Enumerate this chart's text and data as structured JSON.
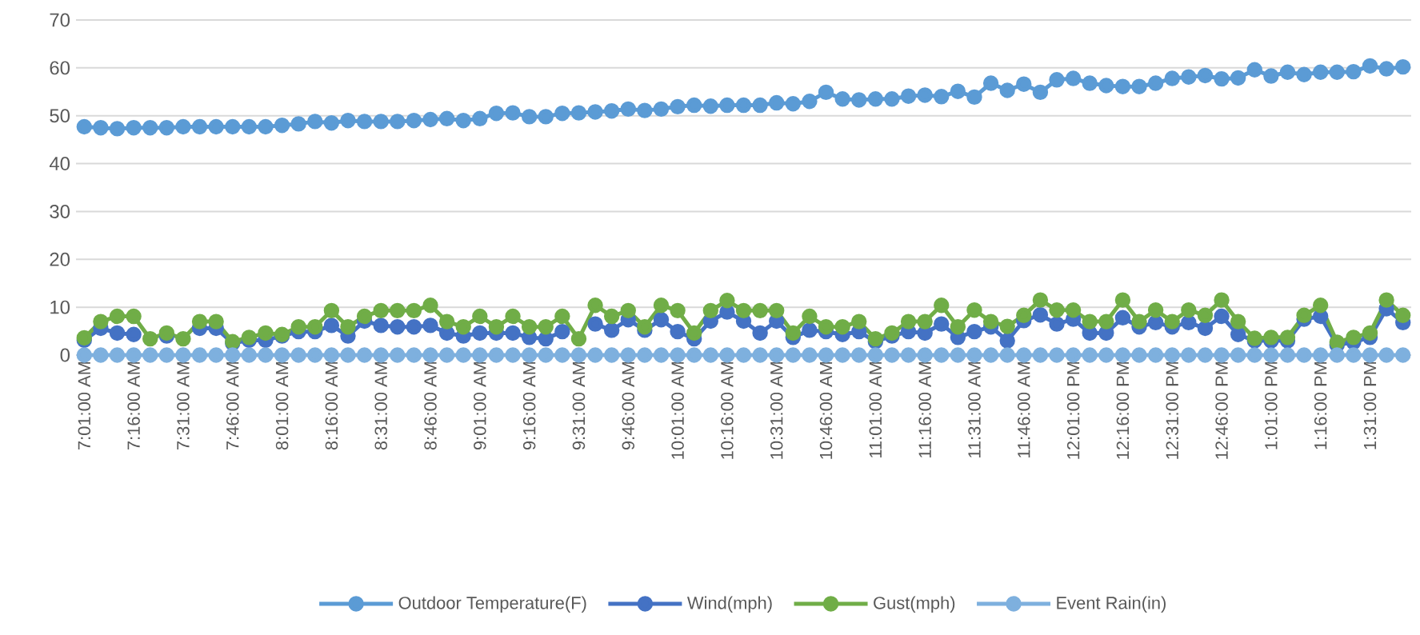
{
  "chart_data": {
    "type": "line",
    "categories": [
      "7:01:00 AM",
      null,
      null,
      "7:16:00 AM",
      null,
      null,
      "7:31:00 AM",
      null,
      null,
      "7:46:00 AM",
      null,
      null,
      "8:01:00 AM",
      null,
      null,
      "8:16:00 AM",
      null,
      null,
      "8:31:00 AM",
      null,
      null,
      "8:46:00 AM",
      null,
      null,
      "9:01:00 AM",
      null,
      null,
      "9:16:00 AM",
      null,
      null,
      "9:31:00 AM",
      null,
      null,
      "9:46:00 AM",
      null,
      null,
      "10:01:00 AM",
      null,
      null,
      "10:16:00 AM",
      null,
      null,
      "10:31:00 AM",
      null,
      null,
      "10:46:00 AM",
      null,
      null,
      "11:01:00 AM",
      null,
      null,
      "11:16:00 AM",
      null,
      null,
      "11:31:00 AM",
      null,
      null,
      "11:46:00 AM",
      null,
      null,
      "12:01:00 PM",
      null,
      null,
      "12:16:00 PM",
      null,
      null,
      "12:31:00 PM",
      null,
      null,
      "12:46:00 PM",
      null,
      null,
      "1:01:00 PM",
      null,
      null,
      "1:16:00 PM",
      null,
      null,
      "1:31:00 PM",
      null,
      null
    ],
    "series": [
      {
        "name": "Outdoor Temperature(F)",
        "color": "#5b9bd5",
        "values": [
          47.7,
          47.5,
          47.3,
          47.5,
          47.5,
          47.5,
          47.7,
          47.7,
          47.7,
          47.7,
          47.7,
          47.7,
          48.0,
          48.3,
          48.8,
          48.5,
          49.0,
          48.8,
          48.8,
          48.8,
          49.0,
          49.2,
          49.4,
          49.0,
          49.4,
          50.5,
          50.6,
          49.8,
          49.8,
          50.5,
          50.6,
          50.8,
          51.0,
          51.4,
          51.1,
          51.4,
          51.9,
          52.2,
          52.0,
          52.2,
          52.2,
          52.2,
          52.7,
          52.5,
          53.0,
          54.9,
          53.5,
          53.3,
          53.5,
          53.5,
          54.1,
          54.3,
          54.0,
          55.1,
          53.9,
          56.8,
          55.3,
          56.6,
          54.9,
          57.5,
          57.8,
          56.8,
          56.3,
          56.1,
          56.1,
          56.8,
          57.8,
          58.1,
          58.4,
          57.7,
          57.9,
          59.6,
          58.3,
          59.1,
          58.6,
          59.1,
          59.1,
          59.2,
          60.4,
          59.8,
          60.2
        ]
      },
      {
        "name": "Wind(mph)",
        "color": "#4472c4",
        "values": [
          3.1,
          5.6,
          4.6,
          4.3,
          null,
          4.0,
          null,
          5.6,
          5.6,
          2.5,
          3.1,
          3.1,
          4.0,
          4.9,
          4.9,
          6.2,
          4.0,
          7.1,
          6.2,
          5.9,
          5.9,
          6.2,
          4.6,
          4.0,
          4.6,
          4.6,
          4.6,
          3.7,
          3.4,
          4.9,
          null,
          6.5,
          5.2,
          7.4,
          5.2,
          7.4,
          4.9,
          3.4,
          7.1,
          9.0,
          7.1,
          4.6,
          7.1,
          3.7,
          5.2,
          4.9,
          4.3,
          4.9,
          2.8,
          4.0,
          4.9,
          4.6,
          6.5,
          3.7,
          4.9,
          5.9,
          3.0,
          7.2,
          8.4,
          6.5,
          7.5,
          4.6,
          4.6,
          7.8,
          5.9,
          6.8,
          5.9,
          6.8,
          5.6,
          8.1,
          4.3,
          3.0,
          3.0,
          3.0,
          7.5,
          8.1,
          2.1,
          2.7,
          3.7,
          9.7,
          6.8
        ]
      },
      {
        "name": "Gust(mph)",
        "color": "#70ad47",
        "values": [
          3.6,
          7.0,
          8.1,
          8.1,
          3.4,
          4.6,
          3.4,
          7.0,
          7.0,
          2.8,
          3.7,
          4.6,
          4.3,
          5.9,
          5.9,
          9.3,
          5.9,
          8.1,
          9.3,
          9.3,
          9.3,
          10.4,
          7.0,
          5.9,
          8.1,
          5.9,
          8.1,
          5.9,
          5.9,
          8.1,
          3.4,
          10.4,
          8.1,
          9.3,
          5.9,
          10.4,
          9.3,
          4.6,
          9.3,
          11.4,
          9.3,
          9.3,
          9.3,
          4.6,
          8.1,
          5.9,
          5.9,
          7.0,
          3.4,
          4.6,
          7.0,
          7.0,
          10.4,
          5.9,
          9.4,
          7.0,
          6.0,
          8.3,
          11.5,
          9.4,
          9.4,
          7.0,
          7.0,
          11.5,
          7.0,
          9.4,
          7.0,
          9.4,
          8.3,
          11.5,
          7.0,
          3.5,
          3.7,
          3.7,
          8.3,
          10.4,
          2.7,
          3.7,
          4.6,
          11.5,
          8.3
        ]
      },
      {
        "name": "Event Rain(in)",
        "color": "#7eb0de",
        "values": [
          0,
          0,
          0,
          0,
          0,
          0,
          0,
          0,
          0,
          0,
          0,
          0,
          0,
          0,
          0,
          0,
          0,
          0,
          0,
          0,
          0,
          0,
          0,
          0,
          0,
          0,
          0,
          0,
          0,
          0,
          0,
          0,
          0,
          0,
          0,
          0,
          0,
          0,
          0,
          0,
          0,
          0,
          0,
          0,
          0,
          0,
          0,
          0,
          0,
          0,
          0,
          0,
          0,
          0,
          0,
          0,
          0,
          0,
          0,
          0,
          0,
          0,
          0,
          0,
          0,
          0,
          0,
          0,
          0,
          0,
          0,
          0,
          0,
          0,
          0,
          0,
          0,
          0,
          0,
          0,
          0
        ]
      }
    ],
    "ylim": [
      0,
      70
    ],
    "yticks": [
      0,
      10,
      20,
      30,
      40,
      50,
      60,
      70
    ],
    "grid": "y",
    "legend": "bottom",
    "marker": "circle"
  }
}
